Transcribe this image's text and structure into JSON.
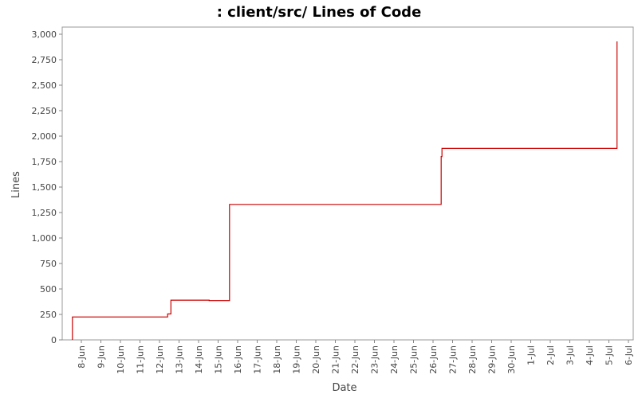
{
  "chart_data": {
    "type": "line",
    "title": ": client/src/ Lines of Code",
    "xlabel": "Date",
    "ylabel": "Lines",
    "ylim": [
      0,
      3000
    ],
    "yticks": [
      0,
      250,
      500,
      750,
      1000,
      1250,
      1500,
      1750,
      2000,
      2250,
      2500,
      2750,
      3000
    ],
    "ytick_labels": [
      "0",
      "250",
      "500",
      "750",
      "1,000",
      "1,250",
      "1,500",
      "1,750",
      "2,000",
      "2,250",
      "2,500",
      "2,750",
      "3,000"
    ],
    "xlim": [
      "2010-06-07",
      "2010-07-06"
    ],
    "xtick_labels": [
      "8-Jun",
      "9-Jun",
      "10-Jun",
      "11-Jun",
      "12-Jun",
      "13-Jun",
      "14-Jun",
      "15-Jun",
      "16-Jun",
      "17-Jun",
      "18-Jun",
      "19-Jun",
      "20-Jun",
      "21-Jun",
      "22-Jun",
      "23-Jun",
      "24-Jun",
      "25-Jun",
      "26-Jun",
      "27-Jun",
      "28-Jun",
      "29-Jun",
      "30-Jun",
      "1-Jul",
      "2-Jul",
      "3-Jul",
      "4-Jul",
      "5-Jul",
      "6-Jul"
    ],
    "grid": false,
    "series_color": "#cc0000",
    "series": [
      {
        "step": true,
        "points": [
          [
            "2010-06-07 13:00",
            0
          ],
          [
            "2010-06-07 13:00",
            225
          ],
          [
            "2010-06-12 10:00",
            255
          ],
          [
            "2010-06-12 14:00",
            390
          ],
          [
            "2010-06-14 13:00",
            385
          ],
          [
            "2010-06-15 14:00",
            1330
          ],
          [
            "2010-06-26 10:00",
            1800
          ],
          [
            "2010-06-26 11:00",
            1880
          ],
          [
            "2010-07-05 10:00",
            2930
          ]
        ]
      }
    ]
  }
}
